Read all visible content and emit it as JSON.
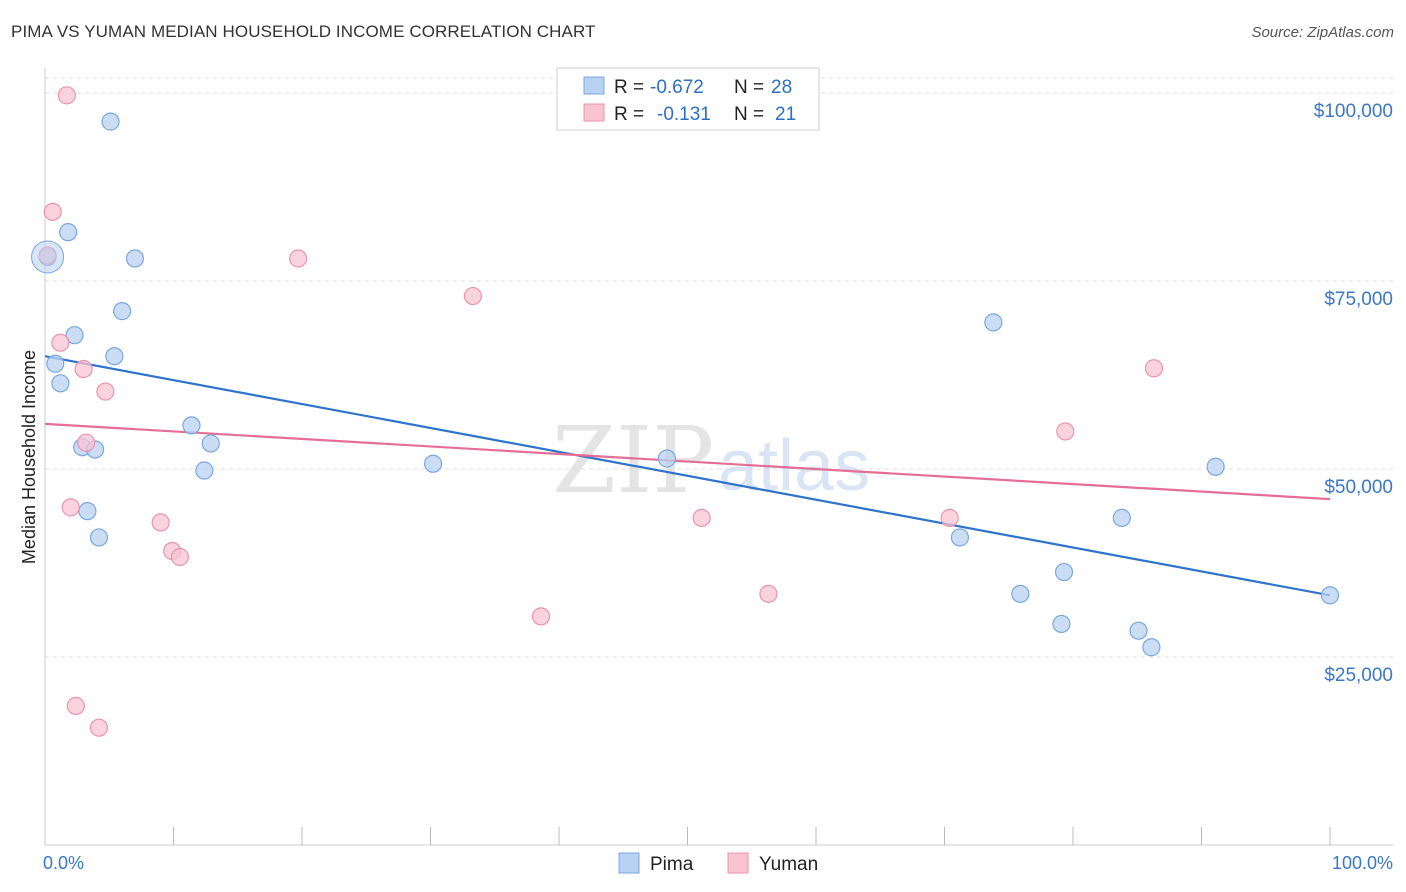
{
  "title": "PIMA VS YUMAN MEDIAN HOUSEHOLD INCOME CORRELATION CHART",
  "source": "Source: ZipAtlas.com",
  "watermark": {
    "zip": "ZIP",
    "atlas": "atlas"
  },
  "legend_top": [
    {
      "r_label": "R = ",
      "r_value": "-0.672",
      "n_label": "N = ",
      "n_value": "28"
    },
    {
      "r_label": "R = ",
      "r_value": "-0.131",
      "n_label": "N = ",
      "n_value": "21"
    }
  ],
  "legend_bottom": [
    "Pima",
    "Yuman"
  ],
  "colors": {
    "pima_fill": "#b8d2f2",
    "pima_stroke": "#7aa7e0",
    "pima_line": "#2e73cc",
    "yuman_fill": "#f8c4d3",
    "yuman_stroke": "#eb94ae",
    "yuman_line": "#e56e94",
    "grid": "#dddddd",
    "axis_text": "#3a77c8"
  },
  "chart_data": {
    "type": "scatter",
    "title": "PIMA VS YUMAN MEDIAN HOUSEHOLD INCOME CORRELATION CHART",
    "xlabel": "",
    "ylabel": "Median Household Income",
    "xlim": [
      0,
      100
    ],
    "ylim": [
      0,
      102000
    ],
    "x_tick_labels": [
      "0.0%",
      "100.0%"
    ],
    "y_ticks": [
      25000,
      50000,
      75000,
      100000
    ],
    "y_tick_labels": [
      "$25,000",
      "$50,000",
      "$75,000",
      "$100,000"
    ],
    "grid": "horizontal dashed",
    "series": [
      {
        "name": "Pima",
        "r": -0.672,
        "n": 28,
        "trend": {
          "x": [
            0,
            100
          ],
          "y": [
            65000,
            33200
          ]
        },
        "points": [
          [
            0.2,
            78200
          ],
          [
            1.8,
            81500
          ],
          [
            5.1,
            96200
          ],
          [
            7.0,
            78000
          ],
          [
            6.0,
            71000
          ],
          [
            2.3,
            67800
          ],
          [
            5.4,
            65000
          ],
          [
            0.8,
            64000
          ],
          [
            1.2,
            61400
          ],
          [
            11.4,
            55800
          ],
          [
            12.9,
            53400
          ],
          [
            2.9,
            52900
          ],
          [
            3.9,
            52600
          ],
          [
            12.4,
            49800
          ],
          [
            30.2,
            50700
          ],
          [
            48.4,
            51400
          ],
          [
            3.3,
            44400
          ],
          [
            4.2,
            40900
          ],
          [
            73.8,
            69500
          ],
          [
            91.1,
            50300
          ],
          [
            83.8,
            43500
          ],
          [
            71.2,
            40900
          ],
          [
            79.3,
            36300
          ],
          [
            75.9,
            33400
          ],
          [
            79.1,
            29400
          ],
          [
            85.1,
            28500
          ],
          [
            86.1,
            26300
          ],
          [
            100,
            33200
          ]
        ]
      },
      {
        "name": "Yuman",
        "r": -0.131,
        "n": 21,
        "trend": {
          "x": [
            0,
            100
          ],
          "y": [
            56000,
            46000
          ]
        },
        "points": [
          [
            1.7,
            99700
          ],
          [
            0.6,
            84200
          ],
          [
            0.2,
            78400
          ],
          [
            19.7,
            78000
          ],
          [
            33.3,
            73000
          ],
          [
            1.2,
            66800
          ],
          [
            3.0,
            63300
          ],
          [
            4.7,
            60300
          ],
          [
            3.2,
            53500
          ],
          [
            2.0,
            44900
          ],
          [
            9.0,
            42900
          ],
          [
            9.9,
            39100
          ],
          [
            10.5,
            38300
          ],
          [
            38.6,
            30400
          ],
          [
            51.1,
            43500
          ],
          [
            70.4,
            43500
          ],
          [
            56.3,
            33400
          ],
          [
            79.4,
            55000
          ],
          [
            86.3,
            63400
          ],
          [
            2.4,
            18500
          ],
          [
            4.2,
            15600
          ]
        ]
      }
    ]
  }
}
